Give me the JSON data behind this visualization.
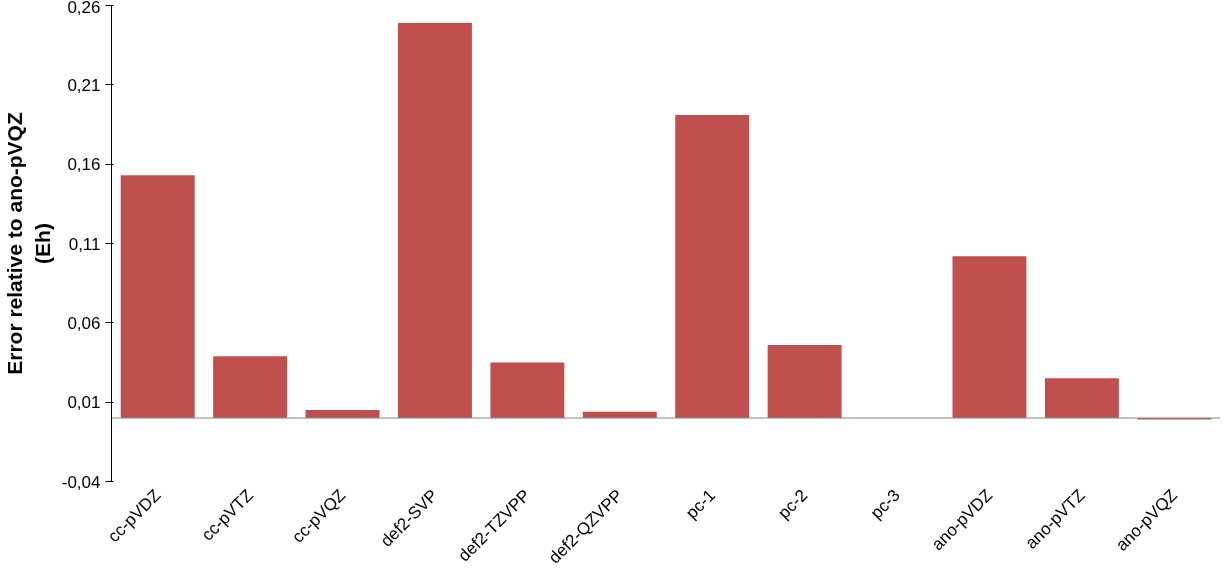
{
  "chart_data": {
    "type": "bar",
    "ylabel": "Error relative to ano-pVQZ\n(Eh)",
    "categories": [
      "cc-pVDZ",
      "cc-pVTZ",
      "cc-pVQZ",
      "def2-SVP",
      "def2-TZVPP",
      "def2-QZVPP",
      "pc-1",
      "pc-2",
      "pc-3",
      "ano-pVDZ",
      "ano-pVTZ",
      "ano-pVQZ"
    ],
    "values": [
      0.153,
      0.039,
      0.005,
      0.249,
      0.035,
      0.004,
      0.191,
      0.046,
      0,
      0.102,
      0.025,
      -0.001
    ],
    "color": "#c0504d",
    "ylim": [
      -0.04,
      0.26
    ],
    "yticks": [
      {
        "value": -0.04,
        "label": "-0,04"
      },
      {
        "value": 0.01,
        "label": "0,01"
      },
      {
        "value": 0.06,
        "label": "0,06"
      },
      {
        "value": 0.11,
        "label": "0,11"
      },
      {
        "value": 0.16,
        "label": "0,16"
      },
      {
        "value": 0.21,
        "label": "0,21"
      },
      {
        "value": 0.26,
        "label": "0,26"
      }
    ],
    "grid": false
  }
}
